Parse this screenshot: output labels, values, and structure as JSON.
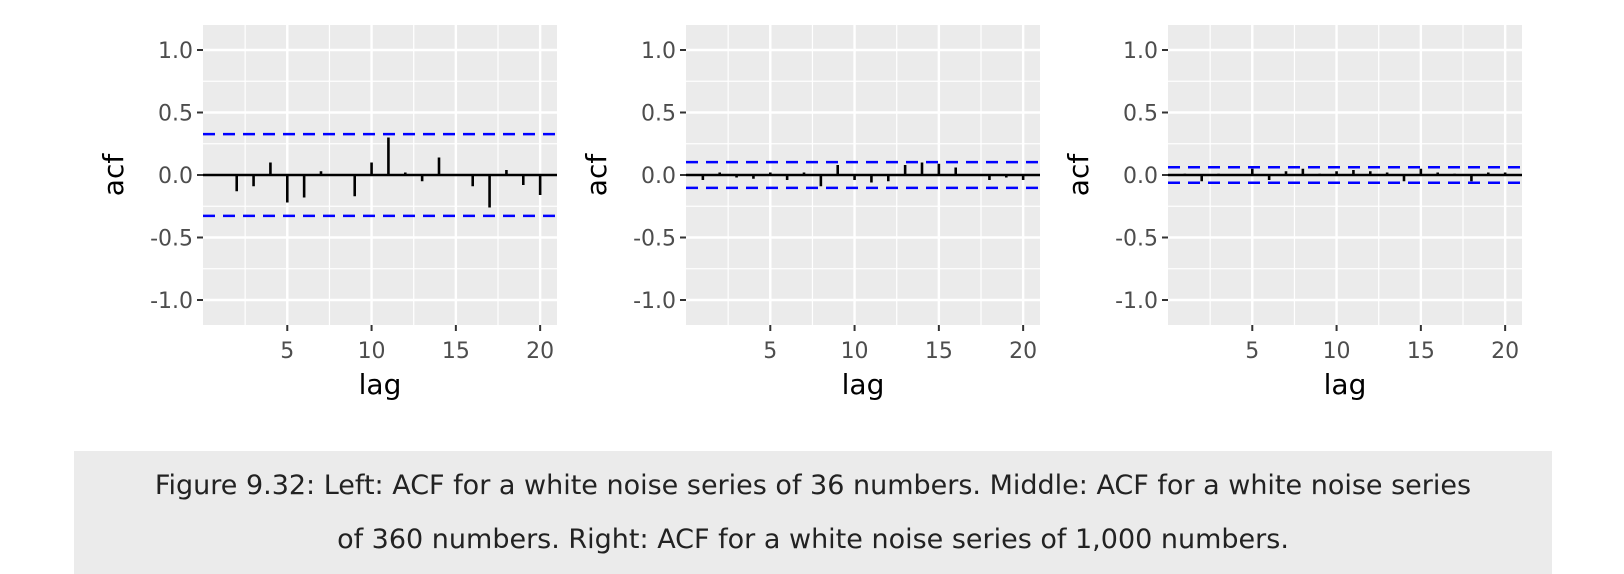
{
  "chart_data": [
    {
      "type": "bar",
      "subtype": "acf",
      "xlabel": "lag",
      "ylabel": "acf",
      "x": [
        1,
        2,
        3,
        4,
        5,
        6,
        7,
        8,
        9,
        10,
        11,
        12,
        13,
        14,
        15,
        16,
        17,
        18,
        19,
        20
      ],
      "values": [
        0.0,
        -0.13,
        -0.09,
        0.1,
        -0.22,
        -0.18,
        0.03,
        0.0,
        -0.17,
        0.1,
        0.3,
        0.02,
        -0.05,
        0.14,
        0.0,
        -0.09,
        -0.26,
        0.04,
        -0.08,
        -0.16
      ],
      "confidence_bound": 0.327,
      "xlim": [
        0,
        21
      ],
      "ylim": [
        -1.0,
        1.0
      ],
      "x_ticks": [
        "5",
        "10",
        "15",
        "20"
      ],
      "x_tick_values": [
        5,
        10,
        15,
        20
      ],
      "y_ticks": [
        "-1.0",
        "-0.5",
        "0.0",
        "0.5",
        "1.0"
      ],
      "y_tick_values": [
        -1.0,
        -0.5,
        0.0,
        0.5,
        1.0
      ],
      "grid": true,
      "colors": {
        "panel": "#ebebeb",
        "grid": "#ffffff",
        "bar": "#000000",
        "bound": "#0000ff"
      }
    },
    {
      "type": "bar",
      "subtype": "acf",
      "xlabel": "lag",
      "ylabel": "acf",
      "x": [
        1,
        2,
        3,
        4,
        5,
        6,
        7,
        8,
        9,
        10,
        11,
        12,
        13,
        14,
        15,
        16,
        17,
        18,
        19,
        20
      ],
      "values": [
        -0.04,
        0.02,
        -0.02,
        -0.03,
        0.02,
        -0.04,
        0.02,
        -0.09,
        0.08,
        -0.04,
        -0.06,
        -0.05,
        0.08,
        0.1,
        0.09,
        0.06,
        0.0,
        -0.04,
        -0.02,
        -0.04
      ],
      "confidence_bound": 0.103,
      "xlim": [
        0,
        21
      ],
      "ylim": [
        -1.0,
        1.0
      ],
      "x_ticks": [
        "5",
        "10",
        "15",
        "20"
      ],
      "x_tick_values": [
        5,
        10,
        15,
        20
      ],
      "y_ticks": [
        "-1.0",
        "-0.5",
        "0.0",
        "0.5",
        "1.0"
      ],
      "y_tick_values": [
        -1.0,
        -0.5,
        0.0,
        0.5,
        1.0
      ],
      "grid": true,
      "colors": {
        "panel": "#ebebeb",
        "grid": "#ffffff",
        "bar": "#000000",
        "bound": "#0000ff"
      }
    },
    {
      "type": "bar",
      "subtype": "acf",
      "xlabel": "lag",
      "ylabel": "acf",
      "x": [
        1,
        2,
        3,
        4,
        5,
        6,
        7,
        8,
        9,
        10,
        11,
        12,
        13,
        14,
        15,
        16,
        17,
        18,
        19,
        20
      ],
      "values": [
        0.01,
        -0.05,
        0.01,
        0.0,
        0.05,
        -0.04,
        0.03,
        0.05,
        0.01,
        0.03,
        0.04,
        0.03,
        0.02,
        -0.05,
        0.05,
        0.02,
        0.01,
        -0.05,
        0.02,
        0.02
      ],
      "confidence_bound": 0.062,
      "xlim": [
        0,
        21
      ],
      "ylim": [
        -1.0,
        1.0
      ],
      "x_ticks": [
        "5",
        "10",
        "15",
        "20"
      ],
      "x_tick_values": [
        5,
        10,
        15,
        20
      ],
      "y_ticks": [
        "-1.0",
        "-0.5",
        "0.0",
        "0.5",
        "1.0"
      ],
      "y_tick_values": [
        -1.0,
        -0.5,
        0.0,
        0.5,
        1.0
      ],
      "grid": true,
      "colors": {
        "panel": "#ebebeb",
        "grid": "#ffffff",
        "bar": "#000000",
        "bound": "#0000ff"
      }
    }
  ],
  "caption": {
    "line1": "Figure 9.32: Left: ACF for a white noise series of 36 numbers. Middle: ACF for a white noise series",
    "line2": "of 360 numbers. Right: ACF for a white noise series of 1,000 numbers."
  }
}
